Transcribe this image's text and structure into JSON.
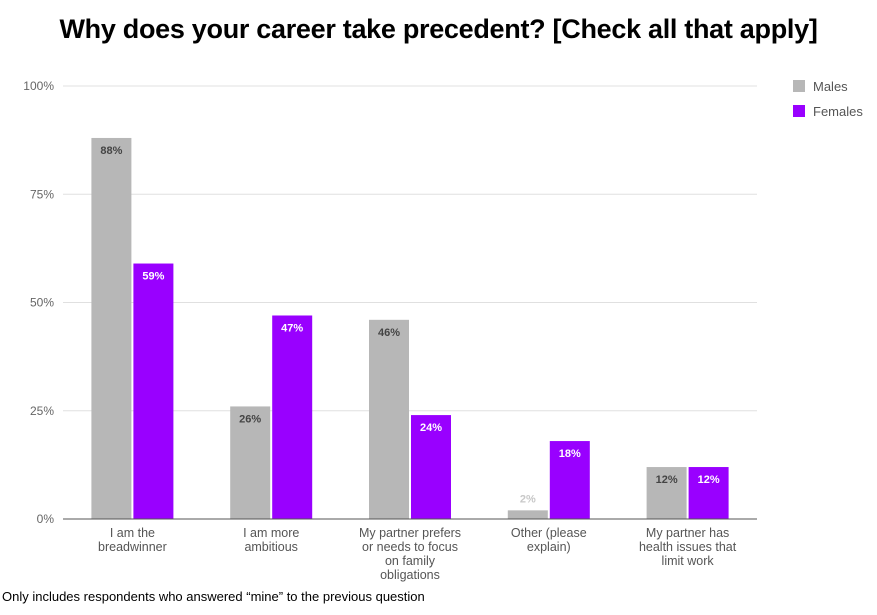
{
  "chart_data": {
    "type": "bar",
    "title": "Why does your career take precedent? [Check all that apply]",
    "categories": [
      [
        "I am the",
        "breadwinner"
      ],
      [
        "I am more",
        "ambitious"
      ],
      [
        "My partner prefers",
        "or needs to focus",
        "on family",
        "obligations"
      ],
      [
        "Other (please",
        "explain)"
      ],
      [
        "My partner has",
        "health issues that",
        "limit work"
      ]
    ],
    "series": [
      {
        "name": "Males",
        "values": [
          88,
          26,
          46,
          2,
          12
        ],
        "labels": [
          "88%",
          "26%",
          "46%",
          "2%",
          "12%"
        ],
        "color": "#b7b7b7"
      },
      {
        "name": "Females",
        "values": [
          59,
          47,
          24,
          18,
          12
        ],
        "labels": [
          "59%",
          "47%",
          "24%",
          "18%",
          "12%"
        ],
        "color": "#9900ff"
      }
    ],
    "yticks": [
      "0%",
      "25%",
      "50%",
      "75%",
      "100%"
    ],
    "ylim": [
      0,
      100
    ],
    "grid": true,
    "legend": "top-right",
    "footnote": "Only includes respondents who answered “mine” to the previous question"
  }
}
